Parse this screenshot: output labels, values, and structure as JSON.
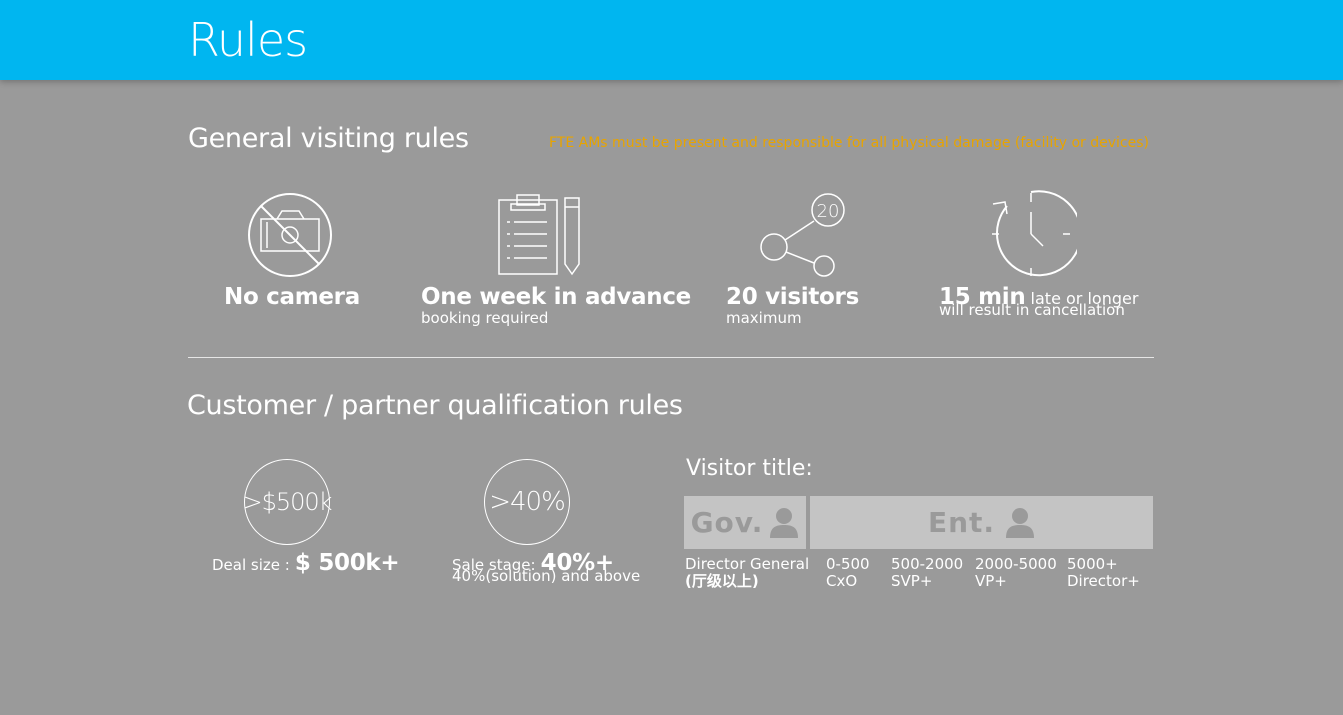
{
  "header": {
    "title": "Rules"
  },
  "general": {
    "title": "General visiting rules",
    "note": "FTE AMs must be present and responsible for all physical damage (facility or devices)",
    "items": [
      {
        "icon": "no-camera-icon",
        "main": "No camera",
        "sub": ""
      },
      {
        "icon": "clipboard-icon",
        "main": "One week in advance",
        "sub": "booking required"
      },
      {
        "icon": "share-nodes-icon",
        "badge": "20",
        "main": "20 visitors",
        "sub": "maximum"
      },
      {
        "icon": "clock-icon",
        "main": "15 min",
        "inline": "late or longer",
        "sub": "will result in cancellation"
      }
    ]
  },
  "qualification": {
    "title": "Customer / partner qualification rules",
    "deal": {
      "circle": ">$500k",
      "label": "Deal size :",
      "value": "$ 500k+"
    },
    "stage": {
      "circle": ">40%",
      "label": "Sale stage:",
      "value": "40%+",
      "sub": "40%(solution) and above"
    },
    "visitor": {
      "title": "Visitor title:",
      "gov_label": "Gov.",
      "ent_label": "Ent.",
      "gov": {
        "line1": "Director General",
        "line2": "(厅级以上)"
      },
      "tiers": [
        {
          "size": "0-500",
          "title": "CxO"
        },
        {
          "size": "500-2000",
          "title": "SVP+"
        },
        {
          "size": "2000-5000",
          "title": "VP+"
        },
        {
          "size": "5000+",
          "title": "Director+"
        }
      ]
    }
  },
  "colors": {
    "header": "#00b6f0",
    "background": "#9a9a9a",
    "note": "#e8a400",
    "box": "#c4c4c4"
  }
}
